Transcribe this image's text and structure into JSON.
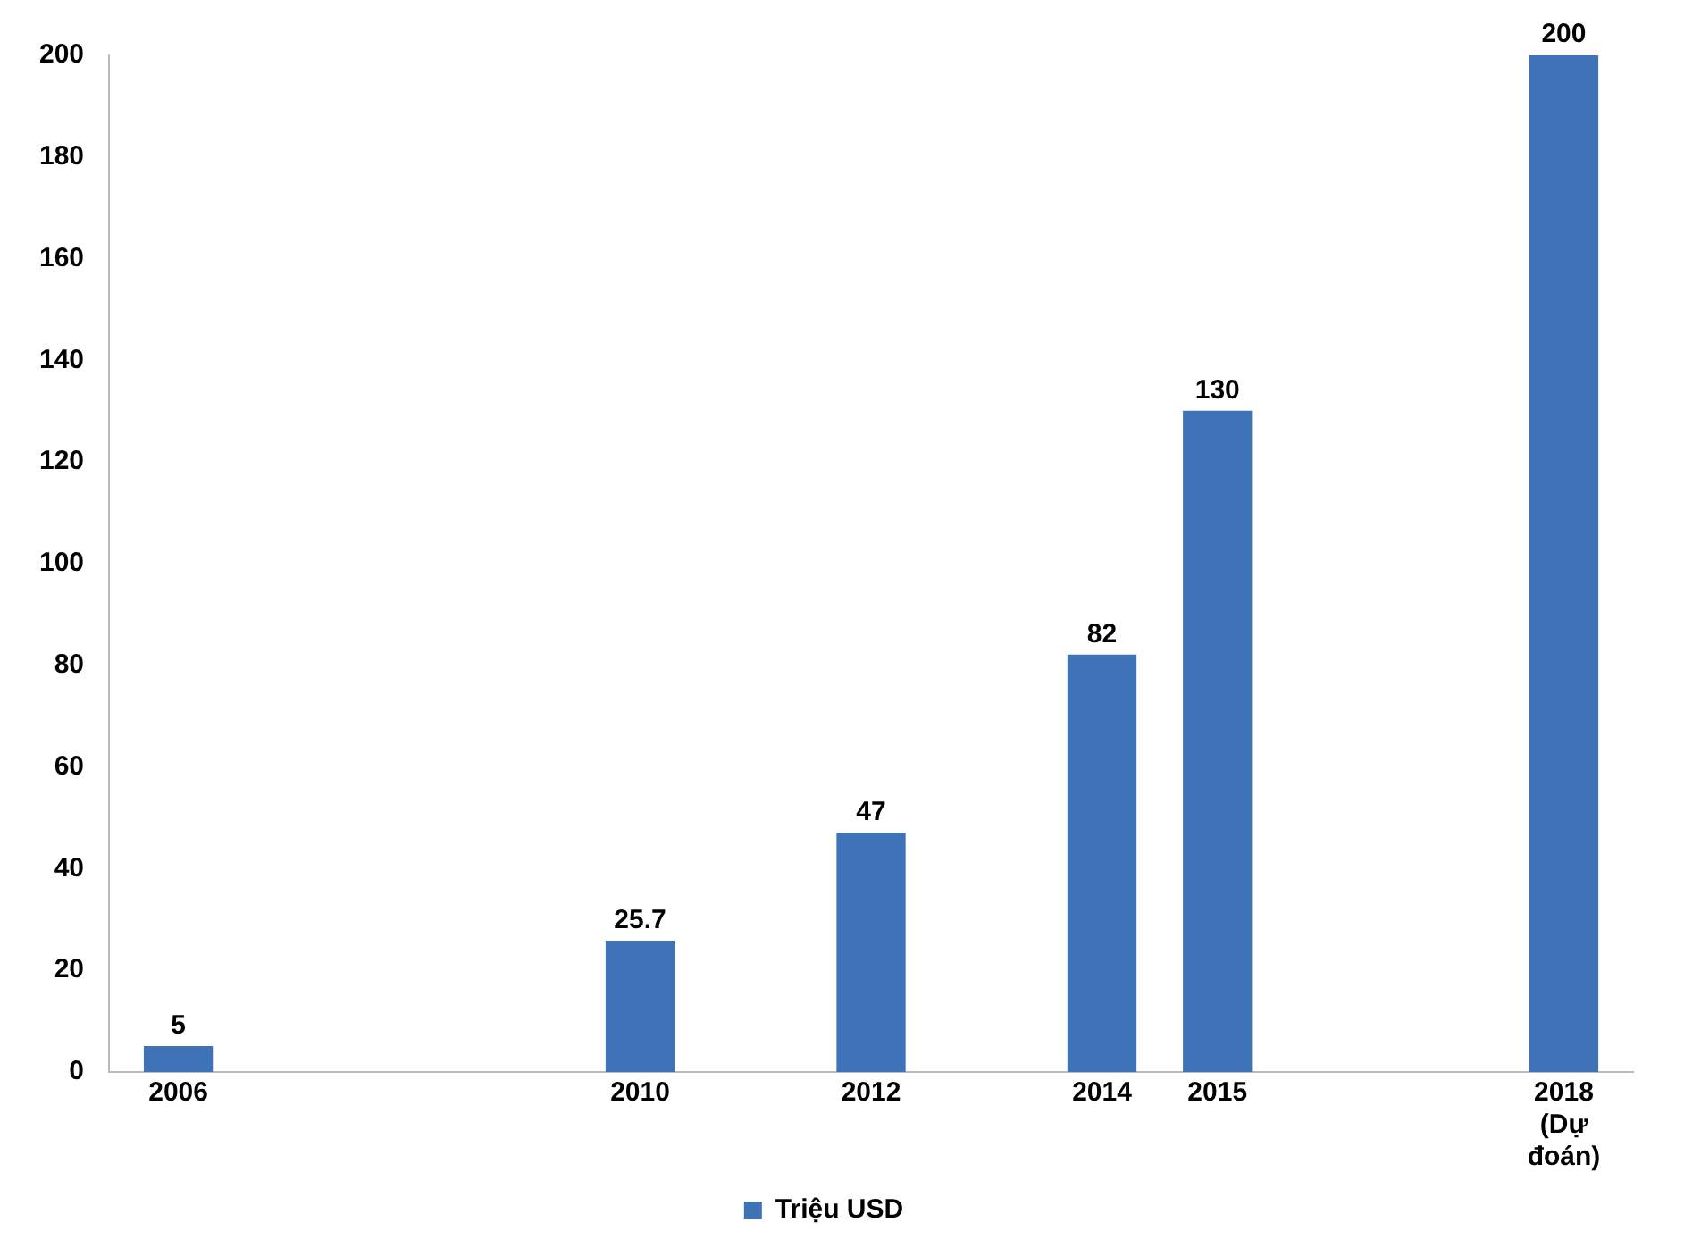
{
  "chart_data": {
    "type": "bar",
    "x": [
      2006,
      2010,
      2012,
      2014,
      2015,
      2018
    ],
    "series": [
      {
        "name": "Triệu USD",
        "color": "#3f73b8",
        "values": [
          5,
          25.7,
          47,
          82,
          130,
          200
        ]
      }
    ],
    "xlim": [
      2005.4,
      2018.6
    ],
    "xticks": [
      2006,
      2010,
      2012,
      2014,
      2015,
      {
        "value": 2018,
        "label": "2018 (Dự đoán)"
      }
    ],
    "ylim": [
      0,
      200
    ],
    "yticks": [
      0,
      20,
      40,
      60,
      80,
      100,
      120,
      140,
      160,
      180,
      200
    ],
    "data_labels": true,
    "legend": "bottom",
    "grid": false
  }
}
